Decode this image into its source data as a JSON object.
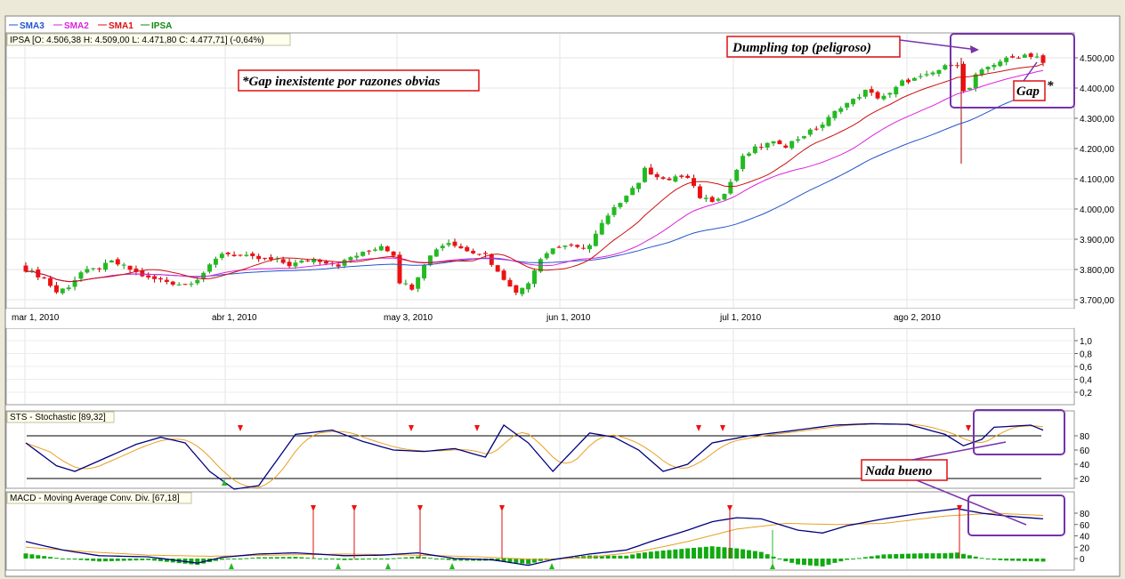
{
  "legend": {
    "items": [
      {
        "label": "SMA3",
        "color": "#2255cc"
      },
      {
        "label": "SMA2",
        "color": "#dd22dd"
      },
      {
        "label": "SMA1",
        "color": "#dd1111"
      },
      {
        "label": "IPSA",
        "color": "#118811"
      }
    ]
  },
  "price_panel": {
    "info": "IPSA [O: 4.506,38  H: 4.509,00  L: 4.471,80  C: 4.477,71] (-0,64%)",
    "y_ticks": [
      "4.500,00",
      "4.400,00",
      "4.300,00",
      "4.200,00",
      "4.100,00",
      "4.000,00",
      "3.900,00",
      "3.800,00",
      "3.700,00"
    ],
    "y_tick_values": [
      4500,
      4400,
      4300,
      4200,
      4100,
      4000,
      3900,
      3800,
      3700
    ],
    "x_ticks": [
      "mar 1, 2010",
      "abr 1, 2010",
      "may 3, 2010",
      "jun 1, 2010",
      "jul 1, 2010",
      "ago 2, 2010"
    ]
  },
  "empty_panel": {
    "y_ticks": [
      "1,0",
      "0,8",
      "0,6",
      "0,4",
      "0,2"
    ]
  },
  "stochastic_panel": {
    "title": "STS - Stochastic [89,32]",
    "y_ticks": [
      "80",
      "60",
      "40",
      "20"
    ]
  },
  "macd_panel": {
    "title": "MACD - Moving Average Conv. Div. [67,18]",
    "y_ticks": [
      "80",
      "60",
      "40",
      "20",
      "0"
    ]
  },
  "annotations": {
    "dumpling": "Dumpling top (peligroso)",
    "gap_inexistente": "*Gap inexistente por razones obvias",
    "gap": "Gap",
    "gap_star": "*",
    "nada_bueno": "Nada bueno"
  },
  "colors": {
    "up_candle": "#22bb22",
    "down_candle": "#ee1111",
    "sma1": "#cc1111",
    "sma2": "#dd22dd",
    "sma3": "#2255cc",
    "osc_main": "#000080",
    "osc_signal": "#e8a020",
    "histogram": "#11aa11",
    "annotation_box": "#7733aa"
  },
  "chart_data": {
    "type": "candlestick",
    "x_range": [
      "2010-02-26",
      "2010-08-20"
    ],
    "ylim": [
      3680,
      4560
    ],
    "ohlc": [],
    "sma1": [],
    "sma2": [],
    "sma3": [],
    "stochastic": {
      "k": [],
      "d": [],
      "ylim": [
        0,
        100
      ],
      "levels": [
        20,
        80
      ]
    },
    "macd": {
      "line": [],
      "signal": [],
      "histogram": []
    }
  }
}
